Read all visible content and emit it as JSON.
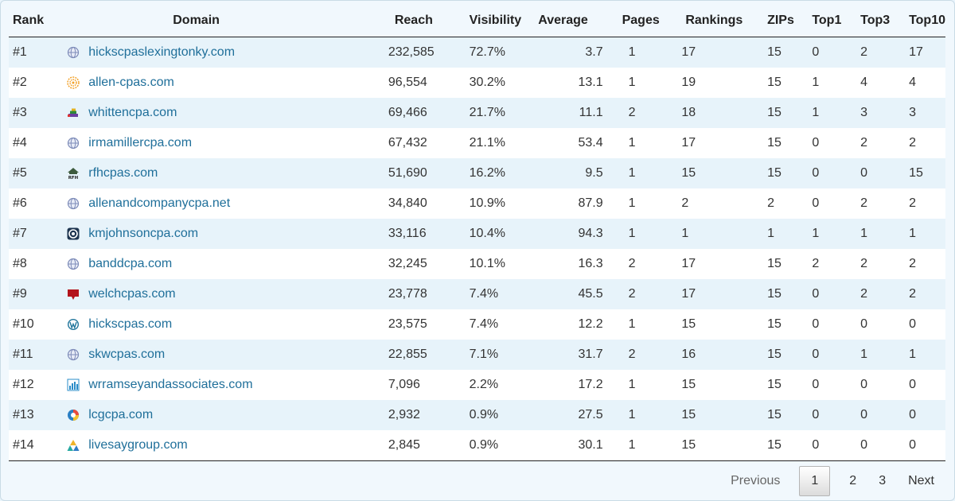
{
  "headers": {
    "rank": "Rank",
    "domain": "Domain",
    "reach": "Reach",
    "visibility": "Visibility",
    "average": "Average",
    "pages": "Pages",
    "rankings": "Rankings",
    "zips": "ZIPs",
    "top1": "Top1",
    "top3": "Top3",
    "top10": "Top10"
  },
  "rows": [
    {
      "rank": "#1",
      "icon": "globe-icon",
      "domain": "hickscpaslexingtonky.com",
      "reach": "232,585",
      "visibility": "72.7%",
      "average": "3.7",
      "pages": "1",
      "rankings": "17",
      "zips": "15",
      "top1": "0",
      "top3": "2",
      "top10": "17"
    },
    {
      "rank": "#2",
      "icon": "sunburst-icon",
      "domain": "allen-cpas.com",
      "reach": "96,554",
      "visibility": "30.2%",
      "average": "13.1",
      "pages": "1",
      "rankings": "19",
      "zips": "15",
      "top1": "1",
      "top3": "4",
      "top10": "4"
    },
    {
      "rank": "#3",
      "icon": "stack-icon",
      "domain": "whittencpa.com",
      "reach": "69,466",
      "visibility": "21.7%",
      "average": "11.1",
      "pages": "2",
      "rankings": "18",
      "zips": "15",
      "top1": "1",
      "top3": "3",
      "top10": "3"
    },
    {
      "rank": "#4",
      "icon": "globe-icon",
      "domain": "irmamillercpa.com",
      "reach": "67,432",
      "visibility": "21.1%",
      "average": "53.4",
      "pages": "1",
      "rankings": "17",
      "zips": "15",
      "top1": "0",
      "top3": "2",
      "top10": "2"
    },
    {
      "rank": "#5",
      "icon": "rfh-house-icon",
      "domain": "rfhcpas.com",
      "reach": "51,690",
      "visibility": "16.2%",
      "average": "9.5",
      "pages": "1",
      "rankings": "15",
      "zips": "15",
      "top1": "0",
      "top3": "0",
      "top10": "15"
    },
    {
      "rank": "#6",
      "icon": "globe-icon",
      "domain": "allenandcompanycpa.net",
      "reach": "34,840",
      "visibility": "10.9%",
      "average": "87.9",
      "pages": "1",
      "rankings": "2",
      "zips": "2",
      "top1": "0",
      "top3": "2",
      "top10": "2"
    },
    {
      "rank": "#7",
      "icon": "circle-badge-icon",
      "domain": "kmjohnsoncpa.com",
      "reach": "33,116",
      "visibility": "10.4%",
      "average": "94.3",
      "pages": "1",
      "rankings": "1",
      "zips": "1",
      "top1": "1",
      "top3": "1",
      "top10": "1"
    },
    {
      "rank": "#8",
      "icon": "globe-icon",
      "domain": "banddcpa.com",
      "reach": "32,245",
      "visibility": "10.1%",
      "average": "16.3",
      "pages": "2",
      "rankings": "17",
      "zips": "15",
      "top1": "2",
      "top3": "2",
      "top10": "2"
    },
    {
      "rank": "#9",
      "icon": "red-banner-icon",
      "domain": "welchcpas.com",
      "reach": "23,778",
      "visibility": "7.4%",
      "average": "45.5",
      "pages": "2",
      "rankings": "17",
      "zips": "15",
      "top1": "0",
      "top3": "2",
      "top10": "2"
    },
    {
      "rank": "#10",
      "icon": "wordpress-icon",
      "domain": "hickscpas.com",
      "reach": "23,575",
      "visibility": "7.4%",
      "average": "12.2",
      "pages": "1",
      "rankings": "15",
      "zips": "15",
      "top1": "0",
      "top3": "0",
      "top10": "0"
    },
    {
      "rank": "#11",
      "icon": "globe-icon",
      "domain": "skwcpas.com",
      "reach": "22,855",
      "visibility": "7.1%",
      "average": "31.7",
      "pages": "2",
      "rankings": "16",
      "zips": "15",
      "top1": "0",
      "top3": "1",
      "top10": "1"
    },
    {
      "rank": "#12",
      "icon": "bar-chart-icon",
      "domain": "wrramseyandassociates.com",
      "reach": "7,096",
      "visibility": "2.2%",
      "average": "17.2",
      "pages": "1",
      "rankings": "15",
      "zips": "15",
      "top1": "0",
      "top3": "0",
      "top10": "0"
    },
    {
      "rank": "#13",
      "icon": "color-circle-icon",
      "domain": "lcgcpa.com",
      "reach": "2,932",
      "visibility": "0.9%",
      "average": "27.5",
      "pages": "1",
      "rankings": "15",
      "zips": "15",
      "top1": "0",
      "top3": "0",
      "top10": "0"
    },
    {
      "rank": "#14",
      "icon": "triangle-logo-icon",
      "domain": "livesaygroup.com",
      "reach": "2,845",
      "visibility": "0.9%",
      "average": "30.1",
      "pages": "1",
      "rankings": "15",
      "zips": "15",
      "top1": "0",
      "top3": "0",
      "top10": "0"
    }
  ],
  "pagination": {
    "previous": "Previous",
    "pages": [
      "1",
      "2",
      "3"
    ],
    "current": "1",
    "next": "Next"
  },
  "colors": {
    "link": "#1f6f9a",
    "row_stripe": "#e7f3fa",
    "background": "#eaf5fc"
  }
}
